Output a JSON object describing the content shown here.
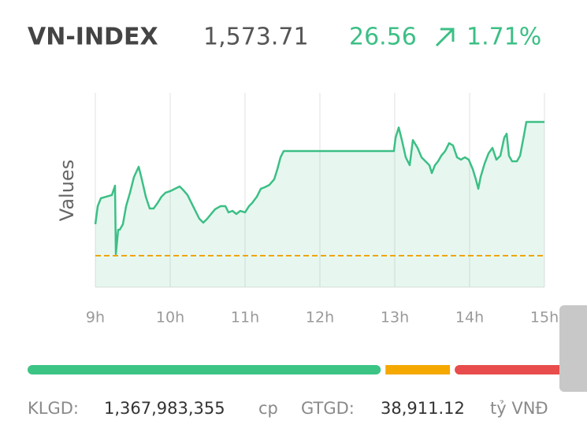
{
  "header": {
    "name": "VN-INDEX",
    "price": "1,573.71",
    "change": "26.56",
    "percent": "1.71%",
    "up_color": "#3cbf85"
  },
  "chart_data": {
    "type": "line",
    "y_label": "Values",
    "xlim": [
      9,
      15
    ],
    "xticks": [
      {
        "value": 9,
        "label": "9h"
      },
      {
        "value": 10,
        "label": "10h"
      },
      {
        "value": 11,
        "label": "11h"
      },
      {
        "value": 12,
        "label": "12h"
      },
      {
        "value": 13,
        "label": "13h"
      },
      {
        "value": 14,
        "label": "14h"
      },
      {
        "value": 15,
        "label": "15h"
      }
    ],
    "ylim": [
      1540.9,
      1579.48
    ],
    "grid": true,
    "reference_line": {
      "value": 1547.15,
      "color": "#f0a500"
    },
    "x": [
      9.0,
      9.032,
      9.074,
      9.147,
      9.221,
      9.263,
      9.274,
      9.305,
      9.326,
      9.368,
      9.411,
      9.463,
      9.516,
      9.579,
      9.621,
      9.674,
      9.726,
      9.779,
      9.832,
      9.884,
      9.937,
      10.0,
      10.063,
      10.126,
      10.179,
      10.232,
      10.284,
      10.337,
      10.389,
      10.442,
      10.495,
      10.547,
      10.6,
      10.674,
      10.737,
      10.779,
      10.832,
      10.884,
      10.937,
      11.0,
      11.053,
      11.095,
      11.158,
      11.211,
      11.263,
      11.326,
      11.389,
      11.432,
      11.474,
      11.516,
      12.989,
      13.011,
      13.053,
      13.095,
      13.147,
      13.2,
      13.242,
      13.305,
      13.358,
      13.411,
      13.463,
      13.495,
      13.537,
      13.579,
      13.621,
      13.674,
      13.726,
      13.779,
      13.832,
      13.884,
      13.937,
      13.989,
      14.042,
      14.084,
      14.116,
      14.147,
      14.2,
      14.253,
      14.305,
      14.358,
      14.411,
      14.463,
      14.495,
      14.526,
      14.568,
      14.632,
      14.674,
      14.726,
      14.758,
      15.0
    ],
    "series": [
      {
        "color": "#3cbf85",
        "values": [
          1553.4,
          1556.99,
          1558.55,
          1558.87,
          1559.18,
          1561.05,
          1547.46,
          1552.3,
          1552.3,
          1553.4,
          1556.99,
          1559.65,
          1562.77,
          1564.8,
          1562.3,
          1558.87,
          1556.52,
          1556.52,
          1557.62,
          1558.87,
          1559.65,
          1559.96,
          1560.43,
          1560.9,
          1560.11,
          1559.18,
          1557.62,
          1556.05,
          1554.49,
          1553.71,
          1554.49,
          1555.43,
          1556.37,
          1556.99,
          1556.99,
          1555.74,
          1556.05,
          1555.43,
          1556.05,
          1555.74,
          1556.99,
          1557.62,
          1558.87,
          1560.43,
          1560.74,
          1561.21,
          1562.3,
          1564.33,
          1566.68,
          1567.92,
          1567.92,
          1570.58,
          1572.61,
          1570.11,
          1566.68,
          1565.11,
          1570.11,
          1568.55,
          1566.68,
          1565.89,
          1565.11,
          1563.55,
          1565.11,
          1565.89,
          1566.99,
          1567.92,
          1569.49,
          1569.02,
          1566.68,
          1566.21,
          1566.68,
          1566.21,
          1564.33,
          1562.3,
          1560.43,
          1562.77,
          1565.42,
          1567.46,
          1568.55,
          1566.21,
          1566.99,
          1570.58,
          1571.36,
          1566.99,
          1565.89,
          1565.89,
          1566.99,
          1571.05,
          1573.71,
          1573.71
        ]
      }
    ]
  },
  "breadth": {
    "values": [
      66.8,
      12.2,
      21.0
    ],
    "colors": [
      "#3cc485",
      "#f5a800",
      "#e84c4c"
    ]
  },
  "footer": {
    "volume_label": "KLGD:",
    "volume": "1,367,983,355",
    "volume_unit": "cp",
    "value_label": "GTGD:",
    "value": "38,911.12",
    "value_unit": "tỷ VNĐ"
  }
}
